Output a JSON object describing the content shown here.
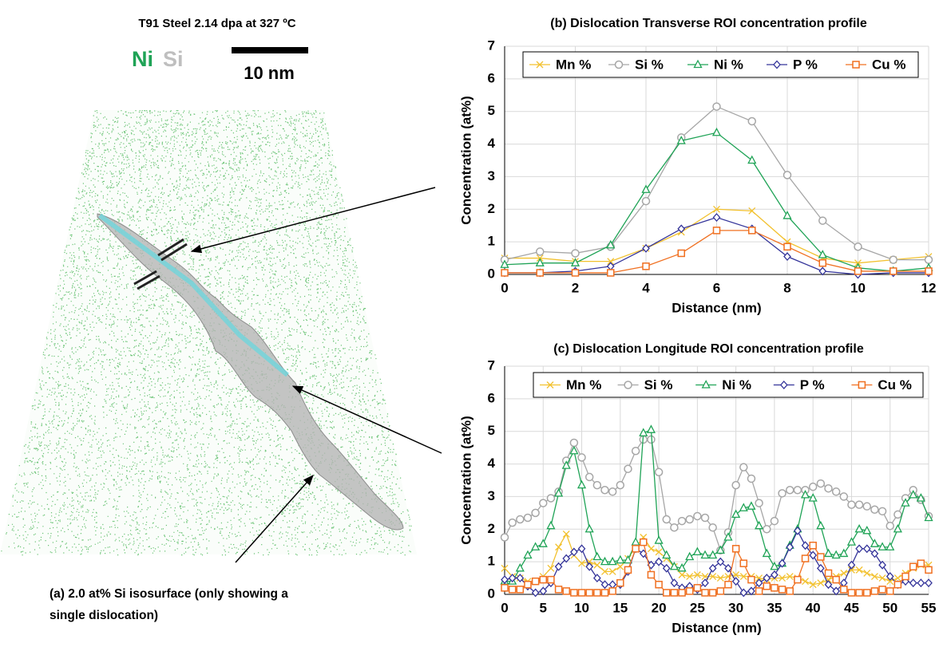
{
  "panel_a": {
    "title": "T91 Steel 2.14 dpa at 327 ºC",
    "legend": [
      "Ni",
      "Si"
    ],
    "scale_bar": "10 nm",
    "caption": [
      "(a) 2.0 at% Si isosurface (only showing a",
      "single dislocation)"
    ]
  },
  "chart_data": [
    {
      "type": "line",
      "title": "(b) Dislocation Transverse ROI concentration profile",
      "x_label": "Distance (nm)",
      "y_label": "Concentration (at%)",
      "x": [
        0,
        1,
        2,
        3,
        4,
        5,
        6,
        7,
        8,
        9,
        10,
        11,
        12
      ],
      "xlim": [
        0,
        12
      ],
      "xticks": [
        0,
        2,
        4,
        6,
        8,
        10,
        12
      ],
      "ylim": [
        0,
        7
      ],
      "yticks": [
        0,
        1,
        2,
        3,
        4,
        5,
        6,
        7
      ],
      "grid": true,
      "legend": "top",
      "series": [
        {
          "name": "Mn %",
          "color": "#f2c12e",
          "marker": "x",
          "values": [
            0.5,
            0.5,
            0.4,
            0.4,
            0.8,
            1.3,
            2.0,
            1.95,
            1.0,
            0.5,
            0.35,
            0.45,
            0.55
          ]
        },
        {
          "name": "Si %",
          "color": "#a6a6a6",
          "marker": "circle",
          "values": [
            0.45,
            0.7,
            0.65,
            0.85,
            2.25,
            4.2,
            5.15,
            4.7,
            3.05,
            1.65,
            0.85,
            0.45,
            0.45
          ]
        },
        {
          "name": "Ni %",
          "color": "#1fa356",
          "marker": "triangle",
          "values": [
            0.3,
            0.35,
            0.35,
            0.9,
            2.6,
            4.1,
            4.35,
            3.5,
            1.8,
            0.6,
            0.2,
            0.1,
            0.2
          ]
        },
        {
          "name": "P %",
          "color": "#34349a",
          "marker": "diamond",
          "values": [
            0.05,
            0.05,
            0.1,
            0.25,
            0.8,
            1.4,
            1.75,
            1.4,
            0.55,
            0.1,
            0.0,
            0.05,
            0.05
          ]
        },
        {
          "name": "Cu %",
          "color": "#f07021",
          "marker": "square",
          "values": [
            0.05,
            0.05,
            0.05,
            0.05,
            0.25,
            0.65,
            1.35,
            1.35,
            0.85,
            0.35,
            0.1,
            0.1,
            0.1
          ]
        }
      ]
    },
    {
      "type": "line",
      "title": "(c) Dislocation Longitude ROI concentration profile",
      "x_label": "Distance (nm)",
      "y_label": "Concentration (at%)",
      "x": [
        0,
        1,
        2,
        3,
        4,
        5,
        6,
        7,
        8,
        9,
        10,
        11,
        12,
        13,
        14,
        15,
        16,
        17,
        18,
        19,
        20,
        21,
        22,
        23,
        24,
        25,
        26,
        27,
        28,
        29,
        30,
        31,
        32,
        33,
        34,
        35,
        36,
        37,
        38,
        39,
        40,
        41,
        42,
        43,
        44,
        45,
        46,
        47,
        48,
        49,
        50,
        51,
        52,
        53,
        54,
        55
      ],
      "xlim": [
        0,
        55
      ],
      "xticks": [
        0,
        5,
        10,
        15,
        20,
        25,
        30,
        35,
        40,
        45,
        50,
        55
      ],
      "ylim": [
        0,
        7
      ],
      "yticks": [
        0,
        1,
        2,
        3,
        4,
        5,
        6,
        7
      ],
      "grid": true,
      "legend": "top",
      "series": [
        {
          "name": "Mn %",
          "color": "#f2c12e",
          "marker": "x",
          "values": [
            0.8,
            0.55,
            0.5,
            0.4,
            0.4,
            0.55,
            0.8,
            1.45,
            1.85,
            1.2,
            0.95,
            1.0,
            0.9,
            0.7,
            0.7,
            0.85,
            1.1,
            1.45,
            1.75,
            1.4,
            1.3,
            1.1,
            0.85,
            0.6,
            0.55,
            0.6,
            0.55,
            0.55,
            0.5,
            0.55,
            0.6,
            0.55,
            0.55,
            0.5,
            0.45,
            0.5,
            0.5,
            0.55,
            0.5,
            0.4,
            0.3,
            0.35,
            0.45,
            0.55,
            0.65,
            0.75,
            0.75,
            0.65,
            0.55,
            0.5,
            0.4,
            0.5,
            0.65,
            0.8,
            0.9,
            0.9
          ]
        },
        {
          "name": "Si %",
          "color": "#a6a6a6",
          "marker": "circle",
          "values": [
            1.75,
            2.2,
            2.3,
            2.35,
            2.5,
            2.8,
            2.95,
            3.15,
            4.1,
            4.65,
            4.2,
            3.6,
            3.35,
            3.2,
            3.15,
            3.35,
            3.85,
            4.4,
            4.75,
            4.75,
            3.75,
            2.3,
            2.05,
            2.25,
            2.3,
            2.4,
            2.35,
            2.05,
            1.35,
            1.9,
            3.35,
            3.9,
            3.55,
            2.8,
            2.0,
            2.25,
            3.1,
            3.2,
            3.2,
            3.2,
            3.3,
            3.4,
            3.25,
            3.15,
            3.0,
            2.75,
            2.75,
            2.7,
            2.6,
            2.55,
            2.1,
            2.45,
            2.95,
            3.2,
            2.9,
            2.4
          ]
        },
        {
          "name": "Ni %",
          "color": "#1fa356",
          "marker": "triangle",
          "values": [
            0.4,
            0.4,
            0.8,
            1.2,
            1.45,
            1.55,
            2.1,
            3.1,
            3.95,
            4.4,
            3.35,
            2.0,
            1.15,
            1.0,
            1.0,
            1.05,
            1.05,
            1.6,
            4.95,
            5.05,
            1.65,
            1.2,
            0.85,
            0.8,
            1.15,
            1.3,
            1.2,
            1.2,
            1.35,
            1.75,
            2.45,
            2.65,
            2.7,
            2.1,
            1.25,
            0.85,
            0.95,
            1.5,
            2.0,
            3.05,
            2.95,
            2.1,
            1.25,
            1.2,
            1.25,
            1.6,
            2.0,
            1.95,
            1.55,
            1.45,
            1.45,
            2.0,
            2.8,
            3.05,
            2.95,
            2.35
          ]
        },
        {
          "name": "P %",
          "color": "#34349a",
          "marker": "diamond",
          "values": [
            0.45,
            0.5,
            0.5,
            0.25,
            0.05,
            0.1,
            0.35,
            0.85,
            1.1,
            1.3,
            1.4,
            0.85,
            0.5,
            0.3,
            0.3,
            0.3,
            0.7,
            1.4,
            1.25,
            0.9,
            1.0,
            0.8,
            0.35,
            0.2,
            0.25,
            0.15,
            0.35,
            0.8,
            1.0,
            0.8,
            0.4,
            0.05,
            0.1,
            0.35,
            0.5,
            0.6,
            0.95,
            1.45,
            1.95,
            1.5,
            1.2,
            0.8,
            0.3,
            0.1,
            0.35,
            0.9,
            1.4,
            1.4,
            1.25,
            0.9,
            0.55,
            0.3,
            0.4,
            0.35,
            0.35,
            0.35
          ]
        },
        {
          "name": "Cu %",
          "color": "#f07021",
          "marker": "square",
          "values": [
            0.2,
            0.15,
            0.15,
            0.3,
            0.4,
            0.45,
            0.45,
            0.15,
            0.1,
            0.05,
            0.05,
            0.05,
            0.05,
            0.05,
            0.1,
            0.35,
            0.75,
            1.4,
            1.6,
            0.6,
            0.3,
            0.05,
            0.05,
            0.05,
            0.1,
            0.2,
            0.05,
            0.05,
            0.1,
            0.3,
            1.4,
            0.95,
            0.45,
            0.1,
            0.25,
            0.2,
            0.15,
            0.1,
            0.45,
            1.1,
            1.5,
            1.15,
            0.65,
            0.45,
            0.15,
            0.05,
            0.05,
            0.05,
            0.1,
            0.15,
            0.1,
            0.3,
            0.55,
            0.85,
            0.95,
            0.75
          ]
        }
      ]
    }
  ]
}
